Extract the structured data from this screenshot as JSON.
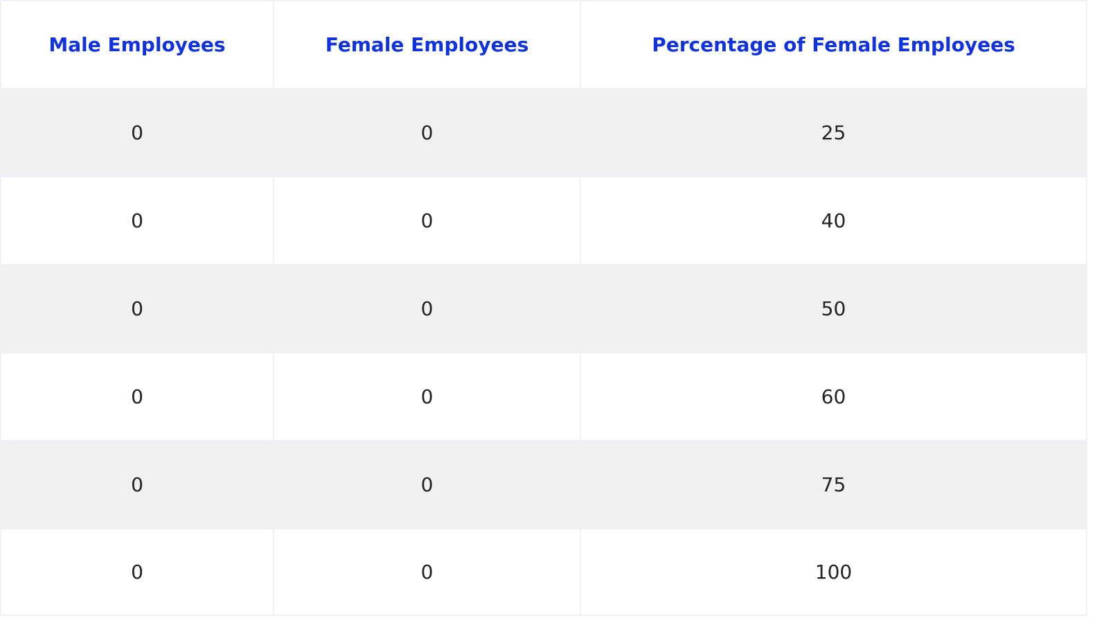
{
  "table": {
    "headers": [
      "Male Employees",
      "Female Employees",
      "Percentage of Female Employees"
    ],
    "rows": [
      [
        "0",
        "0",
        "25"
      ],
      [
        "0",
        "0",
        "40"
      ],
      [
        "0",
        "0",
        "50"
      ],
      [
        "0",
        "0",
        "60"
      ],
      [
        "0",
        "0",
        "75"
      ],
      [
        "0",
        "0",
        "100"
      ]
    ]
  },
  "colors": {
    "header_text": "#1133dd",
    "shaded_row": "#f0f0f0",
    "border": "#eef2f8"
  }
}
